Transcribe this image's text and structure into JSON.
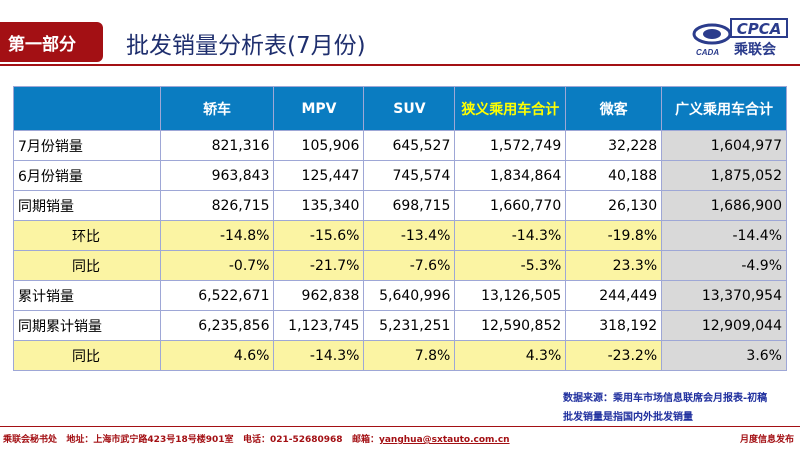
{
  "header": {
    "section_label": "第一部分",
    "title": "批发销量分析表(7月份)",
    "logo_text": "CPCA",
    "logo_cn": "乘联会",
    "logo_sub": "CADA",
    "accent_color": "#a31014",
    "header_blue": "#0a7cc1"
  },
  "table": {
    "columns": [
      "",
      "轿车",
      "MPV",
      "SUV",
      "狭义乘用车合计",
      "微客",
      "广义乘用车合计"
    ],
    "rows": [
      {
        "label": "7月份销量",
        "values": [
          "821,316",
          "105,906",
          "645,527",
          "1,572,749",
          "32,228",
          "1,604,977"
        ]
      },
      {
        "label": "6月份销量",
        "values": [
          "963,843",
          "125,447",
          "745,574",
          "1,834,864",
          "40,188",
          "1,875,052"
        ]
      },
      {
        "label": "同期销量",
        "values": [
          "826,715",
          "135,340",
          "698,715",
          "1,660,770",
          "26,130",
          "1,686,900"
        ]
      },
      {
        "label": "环比",
        "values": [
          "-14.8%",
          "-15.6%",
          "-13.4%",
          "-14.3%",
          "-19.8%",
          "-14.4%"
        ]
      },
      {
        "label": "同比",
        "values": [
          "-0.7%",
          "-21.7%",
          "-7.6%",
          "-5.3%",
          "23.3%",
          "-4.9%"
        ]
      },
      {
        "label": "累计销量",
        "values": [
          "6,522,671",
          "962,838",
          "5,640,996",
          "13,126,505",
          "244,449",
          "13,370,954"
        ]
      },
      {
        "label": "同期累计销量",
        "values": [
          "6,235,856",
          "1,123,745",
          "5,231,251",
          "12,590,852",
          "318,192",
          "12,909,044"
        ]
      },
      {
        "label": "同比",
        "values": [
          "4.6%",
          "-14.3%",
          "7.8%",
          "4.3%",
          "-23.2%",
          "3.6%"
        ]
      }
    ]
  },
  "notes": {
    "source": "数据来源：乘用车市场信息联席会月报表-初稿",
    "definition": "批发销量是指国内外批发销量"
  },
  "footer": {
    "org": "乘联会秘书处",
    "address": "地址：上海市武宁路423号18号楼901室",
    "phone": "电话：021-52680968",
    "email_label": "邮箱：",
    "email": "yanghua@sxtauto.com.cn",
    "right": "月度信息发布"
  }
}
